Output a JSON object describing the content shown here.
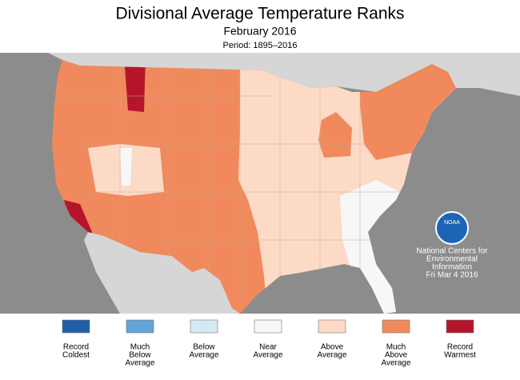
{
  "header": {
    "title": "Divisional Average Temperature Ranks",
    "subtitle": "February 2016",
    "period": "Period: 1895–2016"
  },
  "legend": [
    {
      "lines": [
        "Record",
        "Coldest"
      ],
      "color": "#1f5fa8"
    },
    {
      "lines": [
        "Much",
        "Below",
        "Average"
      ],
      "color": "#62a4d6"
    },
    {
      "lines": [
        "Below",
        "Average"
      ],
      "color": "#d4e9f4"
    },
    {
      "lines": [
        "Near",
        "Average"
      ],
      "color": "#f7f7f7"
    },
    {
      "lines": [
        "Above",
        "Average"
      ],
      "color": "#fcdac6"
    },
    {
      "lines": [
        "Much",
        "Above",
        "Average"
      ],
      "color": "#f08a5d"
    },
    {
      "lines": [
        "Record",
        "Warmest"
      ],
      "color": "#b5152b"
    }
  ],
  "credit": {
    "lines": [
      "National Centers for",
      "Environmental",
      "Information",
      "Fri Mar  4 2016"
    ],
    "logo": "NOAA"
  }
}
